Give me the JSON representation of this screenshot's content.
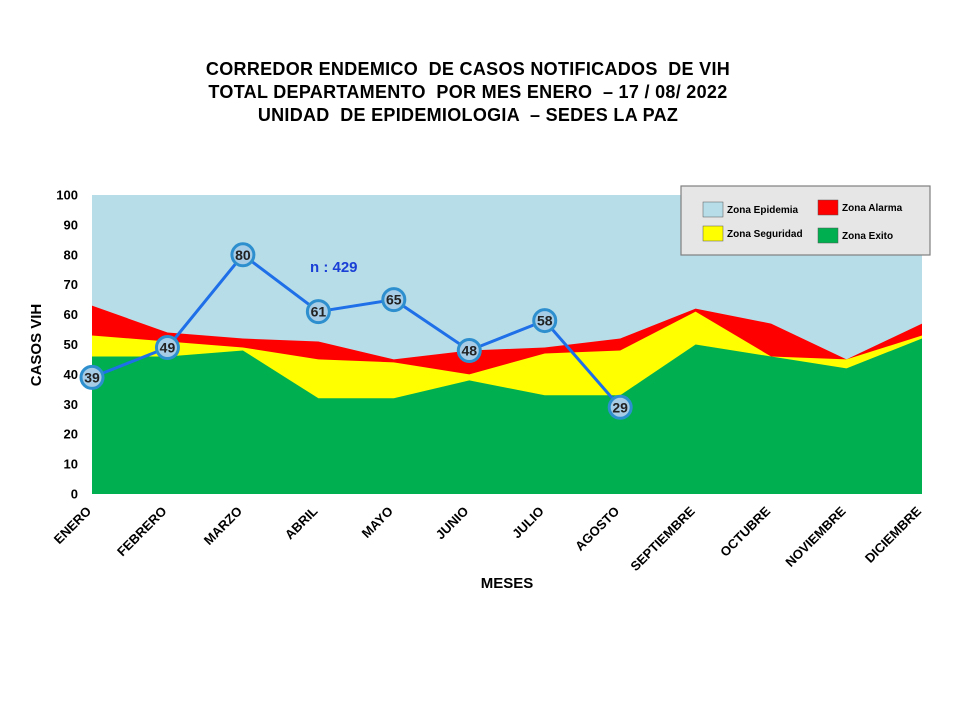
{
  "title_lines": [
    "CORREDOR ENDEMICO  DE CASOS NOTIFICADOS  DE VIH",
    "TOTAL DEPARTAMENTO  POR MES ENERO  – 17 / 08/ 2022",
    "UNIDAD  DE EPIDEMIOLOGIA  – SEDES LA PAZ"
  ],
  "chart_data": {
    "type": "area",
    "title": "CORREDOR ENDEMICO  DE CASOS NOTIFICADOS  DE VIH TOTAL DEPARTAMENTO  POR MES ENERO  – 17 / 08/ 2022 UNIDAD  DE EPIDEMIOLOGIA  – SEDES LA PAZ",
    "xlabel": "MESES",
    "ylabel": "CASOS VIH",
    "ylim": [
      0,
      100
    ],
    "yticks": [
      0,
      10,
      20,
      30,
      40,
      50,
      60,
      70,
      80,
      90,
      100
    ],
    "categories": [
      "ENERO",
      "FEBRERO",
      "MARZO",
      "ABRIL",
      "MAYO",
      "JUNIO",
      "JULIO",
      "AGOSTO",
      "SEPTIEMBRE",
      "OCTUBRE",
      "NOVIEMBRE",
      "DICIEMBRE"
    ],
    "series": [
      {
        "name": "Zona Epidemia",
        "kind": "area",
        "color": "#b7dde8",
        "values": [
          100,
          100,
          100,
          100,
          100,
          100,
          100,
          100,
          100,
          100,
          100,
          100
        ]
      },
      {
        "name": "Zona Alarma",
        "kind": "area",
        "color": "#ff0000",
        "values": [
          63,
          54,
          52,
          51,
          45,
          48,
          49,
          52,
          62,
          57,
          45,
          57
        ]
      },
      {
        "name": "Zona Seguridad",
        "kind": "area",
        "color": "#ffff00",
        "values": [
          53,
          51,
          49,
          45,
          44,
          40,
          47,
          48,
          61,
          46,
          45,
          53
        ]
      },
      {
        "name": "Zona Exito",
        "kind": "area",
        "color": "#00b050",
        "values": [
          46,
          46,
          48,
          32,
          32,
          38,
          33,
          33,
          50,
          46,
          42,
          52
        ]
      },
      {
        "name": "",
        "kind": "line",
        "color": "#1e6fe8",
        "values": [
          39,
          49,
          80,
          61,
          65,
          48,
          58,
          29,
          null,
          null,
          null,
          null
        ]
      }
    ],
    "annotation": "n : 429",
    "legend_position": "top-right",
    "grid": false
  }
}
